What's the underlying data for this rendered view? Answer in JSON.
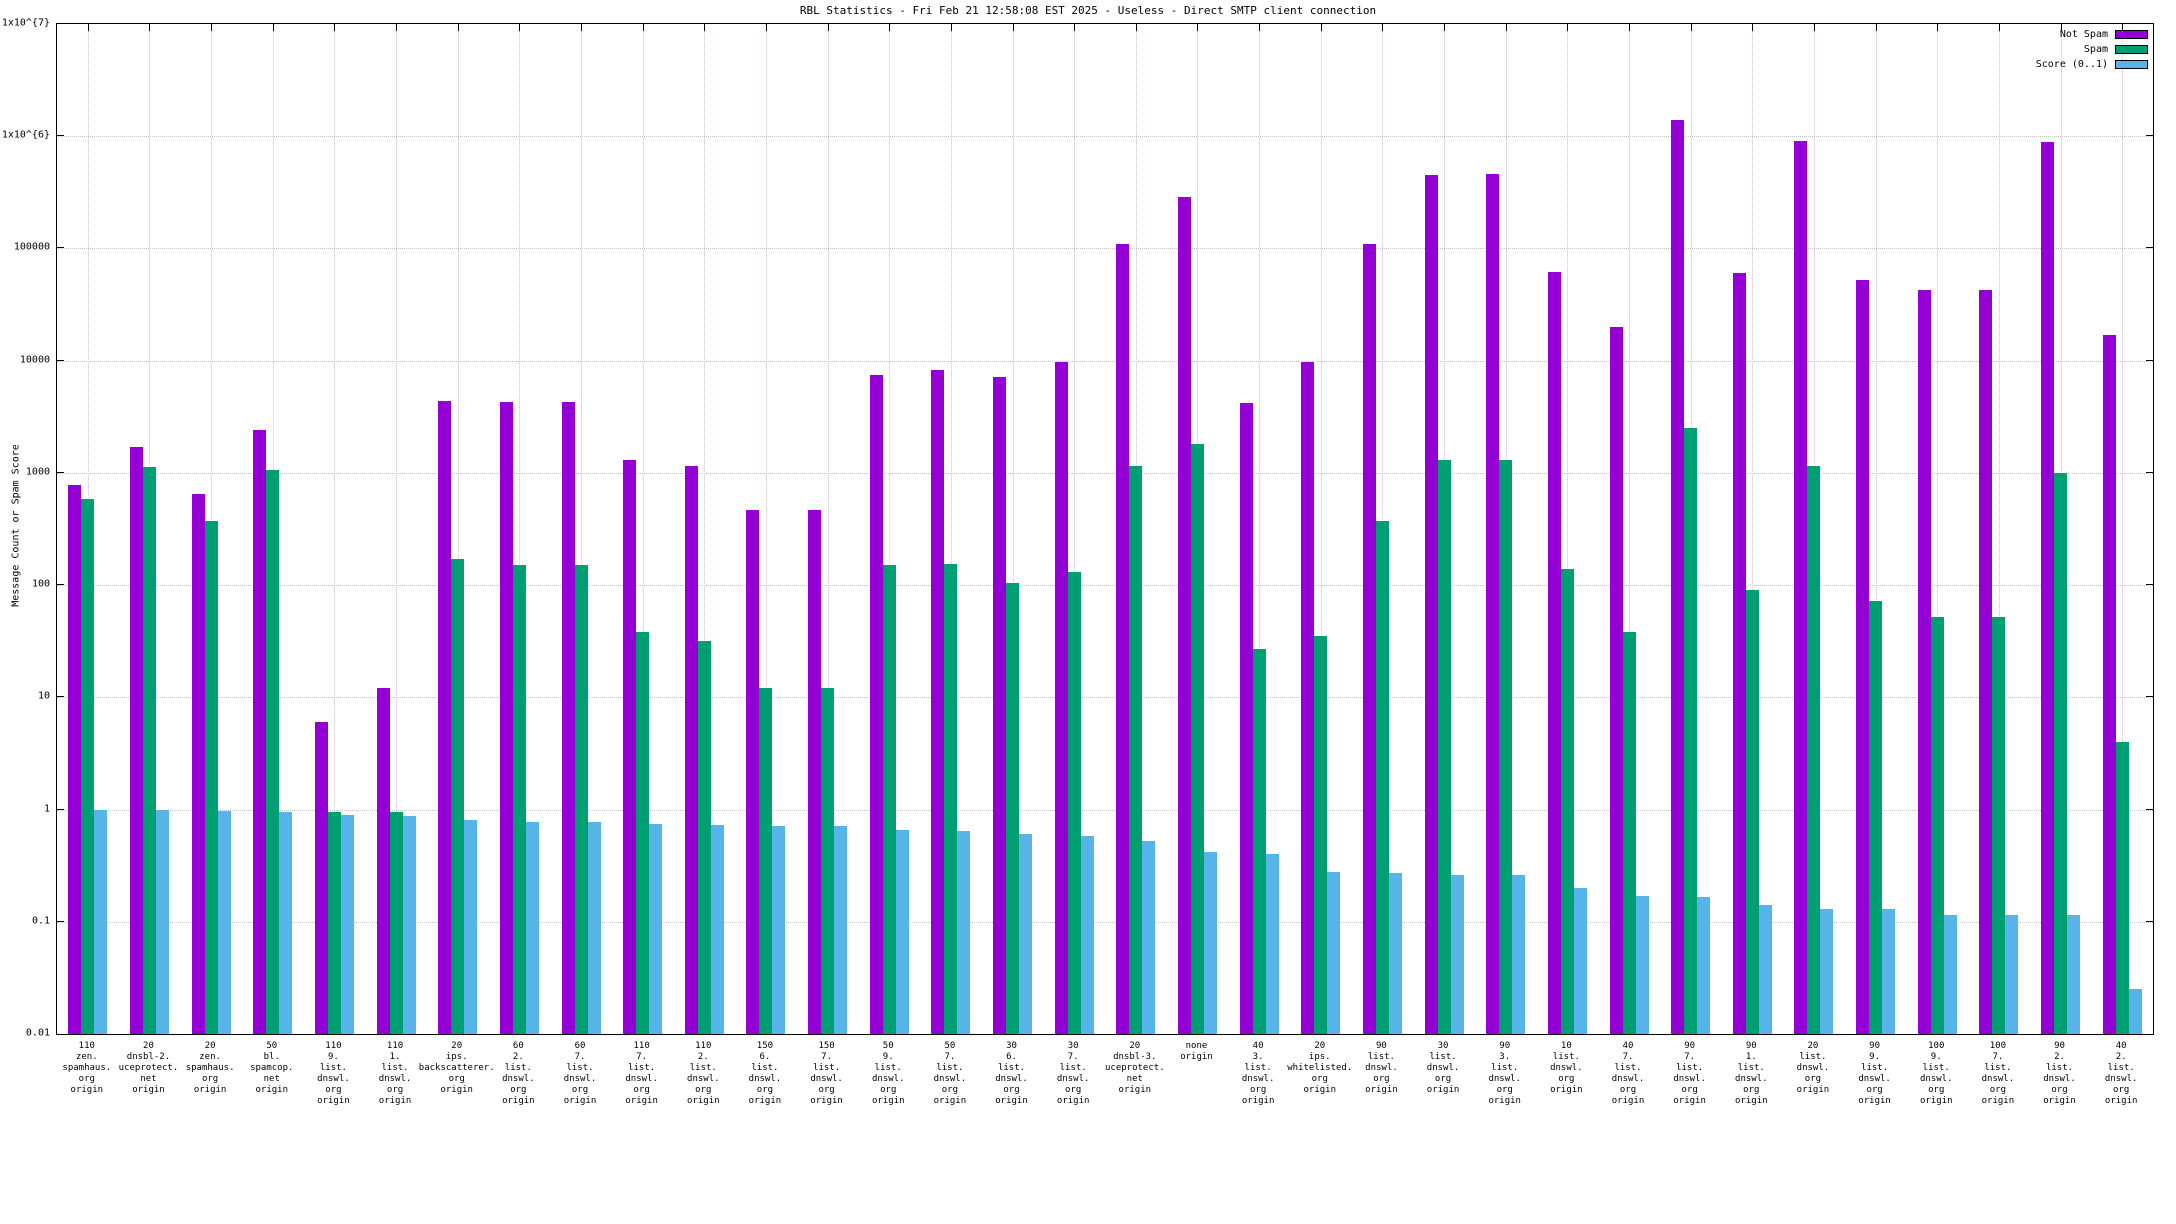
{
  "chart_data": {
    "type": "bar",
    "title": "RBL Statistics - Fri Feb 21 12:58:08 EST 2025 - Useless - Direct SMTP client connection",
    "ylabel": "Message Count or Spam Score",
    "y_scale": "log",
    "ylim": [
      0.01,
      10000000
    ],
    "y_tick_labels": [
      "0.01",
      "0.1",
      "1",
      "10",
      "100",
      "1000",
      "10000",
      "100000",
      "1x10^{6}",
      "1x10^{7}"
    ],
    "grid": true,
    "legend_position": "top-right",
    "categories": [
      "110\nzen.\nspamhaus.\norg\norigin",
      "20\ndnsbl-2.\nuceprotect.\nnet\norigin",
      "20\nzen.\nspamhaus.\norg\norigin",
      "50\nbl.\nspamcop.\nnet\norigin",
      "110\n9.\nlist.\ndnswl.\norg\norigin",
      "110\n1.\nlist.\ndnswl.\norg\norigin",
      "20\nips.\nbackscatterer.\norg\norigin",
      "60\n2.\nlist.\ndnswl.\norg\norigin",
      "60\n7.\nlist.\ndnswl.\norg\norigin",
      "110\n7.\nlist.\ndnswl.\norg\norigin",
      "110\n2.\nlist.\ndnswl.\norg\norigin",
      "150\n6.\nlist.\ndnswl.\norg\norigin",
      "150\n7.\nlist.\ndnswl.\norg\norigin",
      "50\n9.\nlist.\ndnswl.\norg\norigin",
      "50\n7.\nlist.\ndnswl.\norg\norigin",
      "30\n6.\nlist.\ndnswl.\norg\norigin",
      "30\n7.\nlist.\ndnswl.\norg\norigin",
      "20\ndnsbl-3.\nuceprotect.\nnet\norigin",
      "none\norigin",
      "40\n3.\nlist.\ndnswl.\norg\norigin",
      "20\nips.\nwhitelisted.\norg\norigin",
      "90\nlist.\ndnswl.\norg\norigin",
      "30\nlist.\ndnswl.\norg\norigin",
      "90\n3.\nlist.\ndnswl.\norg\norigin",
      "10\nlist.\ndnswl.\norg\norigin",
      "40\n7.\nlist.\ndnswl.\norg\norigin",
      "90\n7.\nlist.\ndnswl.\norg\norigin",
      "90\n1.\nlist.\ndnswl.\norg\norigin",
      "20\nlist.\ndnswl.\norg\norigin",
      "90\n9.\nlist.\ndnswl.\norg\norigin",
      "100\n9.\nlist.\ndnswl.\norg\norigin",
      "100\n7.\nlist.\ndnswl.\norg\norigin",
      "90\n2.\nlist.\ndnswl.\norg\norigin",
      "40\n2.\nlist.\ndnswl.\norg\norigin"
    ],
    "series": [
      {
        "name": "Not Spam",
        "color": "#9400d3",
        "values": [
          780,
          1700,
          650,
          2400,
          6,
          12,
          4400,
          4300,
          4300,
          1300,
          1150,
          470,
          470,
          7500,
          8200,
          7200,
          9800,
          110000,
          290000,
          4200,
          9800,
          110000,
          450000,
          460000,
          62000,
          20000,
          1400000,
          60000,
          900000,
          52000,
          43000,
          43000,
          880000,
          17000
        ]
      },
      {
        "name": "Spam",
        "color": "#009e73",
        "values": [
          580,
          1120,
          370,
          1060,
          0.95,
          0.95,
          170,
          150,
          150,
          38,
          32,
          12,
          12,
          150,
          155,
          105,
          130,
          1150,
          1800,
          27,
          35,
          370,
          1300,
          1300,
          140,
          38,
          2500,
          90,
          1150,
          72,
          52,
          52,
          1000,
          4
        ]
      },
      {
        "name": "Score (0..1)",
        "color": "#56b4e9",
        "values": [
          1.0,
          1.0,
          0.97,
          0.95,
          0.9,
          0.88,
          0.8,
          0.78,
          0.78,
          0.75,
          0.73,
          0.72,
          0.72,
          0.66,
          0.65,
          0.6,
          0.58,
          0.52,
          0.42,
          0.4,
          0.28,
          0.27,
          0.26,
          0.26,
          0.2,
          0.17,
          0.165,
          0.14,
          0.13,
          0.13,
          0.115,
          0.115,
          0.115,
          0.025
        ]
      }
    ]
  }
}
